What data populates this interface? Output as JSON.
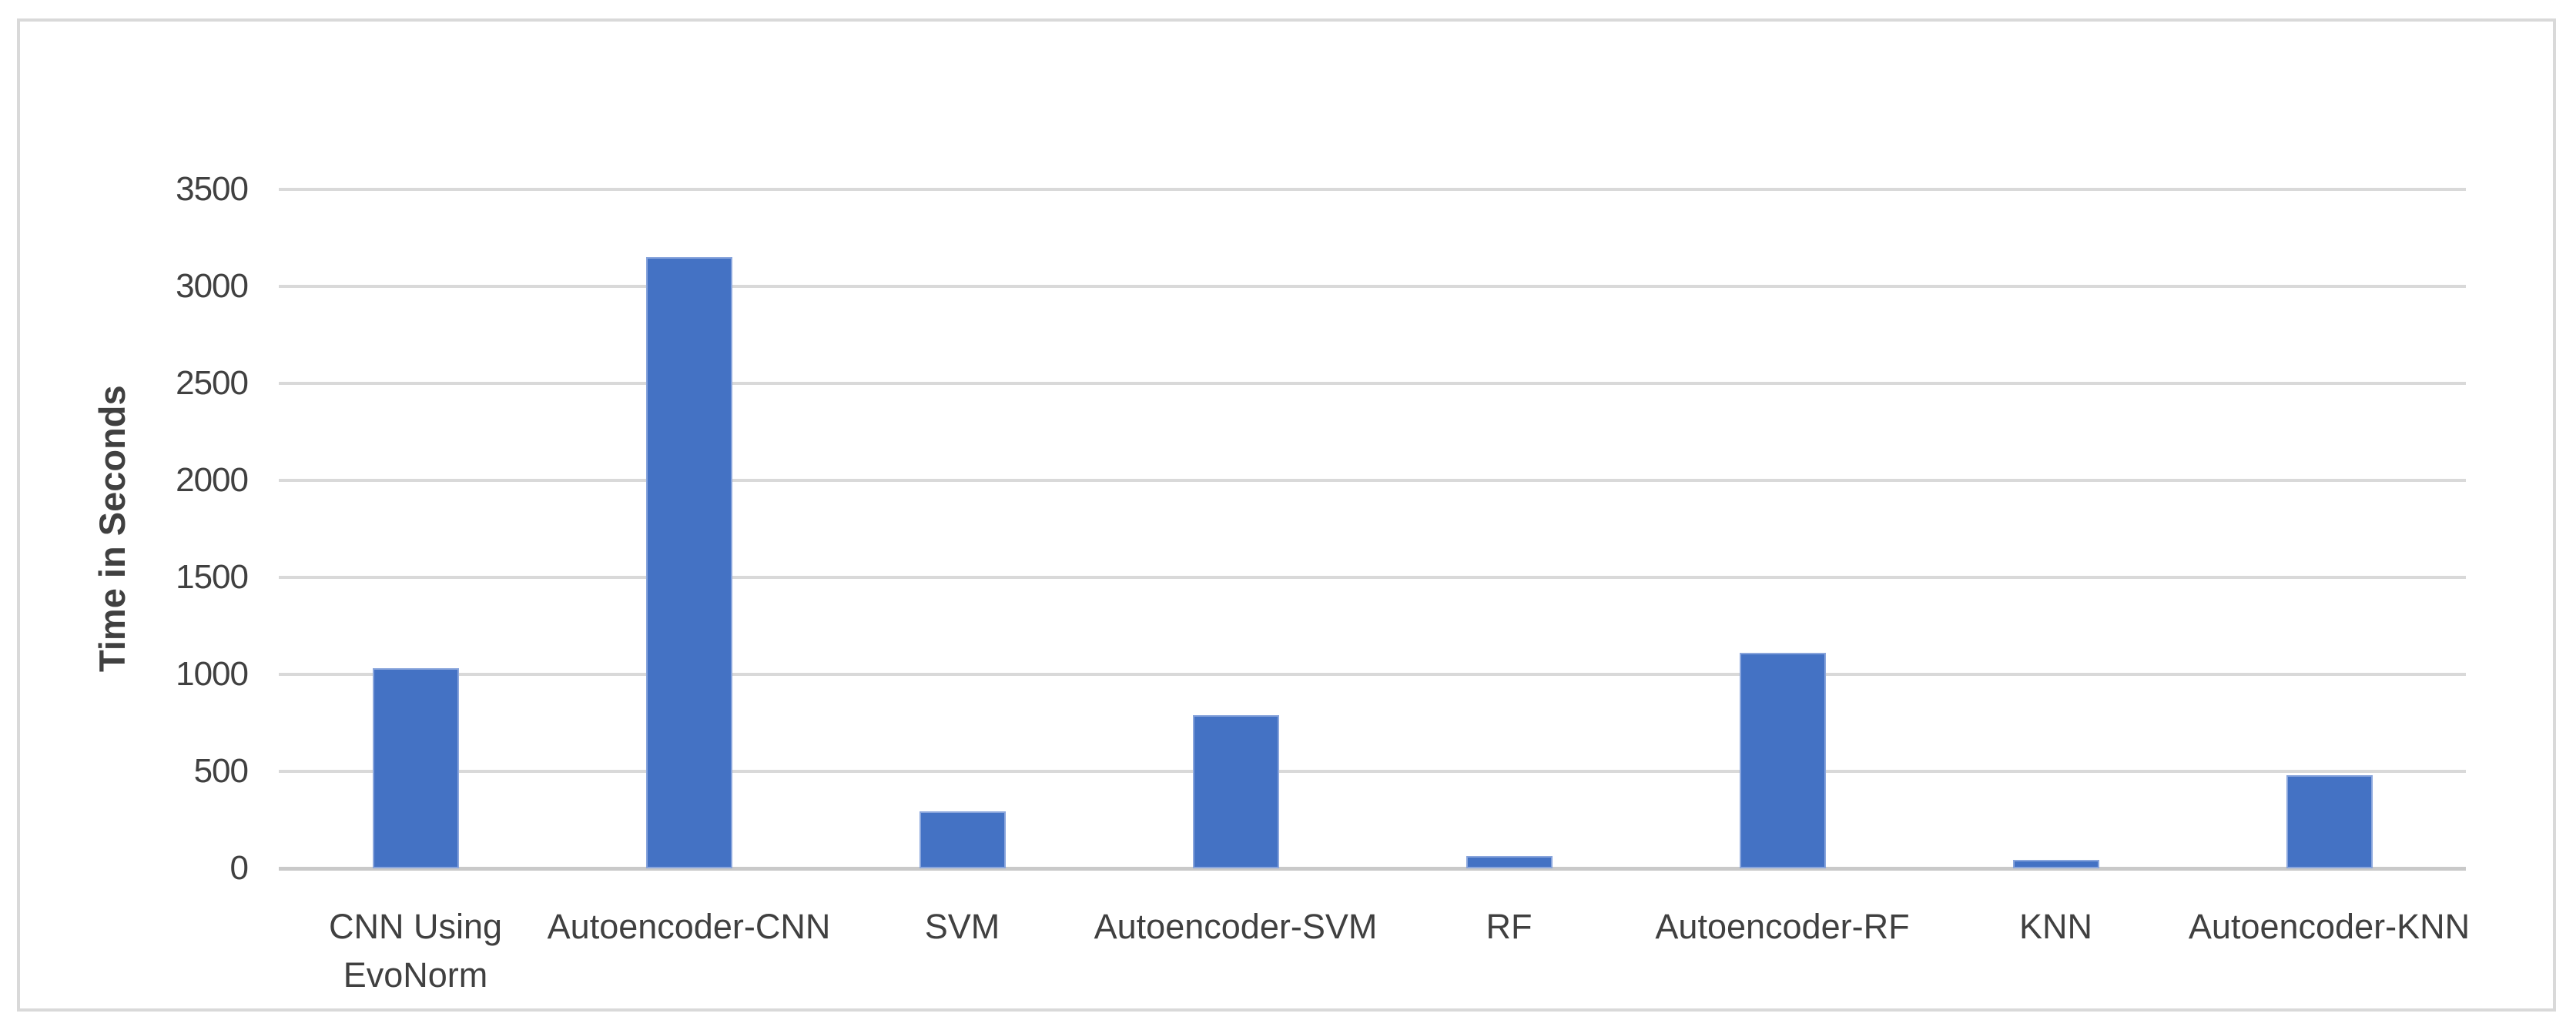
{
  "chart_data": {
    "type": "bar",
    "title": "",
    "xlabel": "",
    "ylabel": "Time in Seconds",
    "categories": [
      "CNN Using\nEvoNorm",
      "Autoencoder-CNN",
      "SVM",
      "Autoencoder-SVM",
      "RF",
      "Autoencoder-RF",
      "KNN",
      "Autoencoder-KNN"
    ],
    "values": [
      1030,
      3150,
      295,
      790,
      65,
      1110,
      45,
      480
    ],
    "ylim": [
      0,
      3500
    ],
    "yticks": [
      0,
      500,
      1000,
      1500,
      2000,
      2500,
      3000,
      3500
    ],
    "grid": true,
    "legend": false,
    "colors": {
      "bar_fill": "#4472c4",
      "bar_edge": "#89a5dc",
      "gridline": "#d9d9d9",
      "axis_line": "#c9c9c9",
      "text": "#404040",
      "frame_border": "#d9d9d9",
      "background": "#ffffff"
    }
  }
}
